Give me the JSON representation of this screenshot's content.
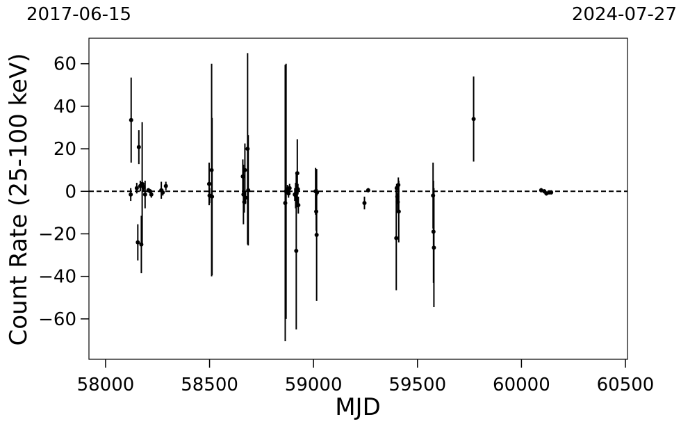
{
  "chart_data": {
    "type": "scatter",
    "top_labels": {
      "left": "2017-06-15",
      "right": "2024-07-27"
    },
    "xlabel": "MJD",
    "ylabel": "Count Rate (25-100 keV)",
    "xlim": [
      57920,
      60510
    ],
    "ylim": [
      -79,
      72
    ],
    "xticks": [
      58000,
      58500,
      59000,
      59500,
      60000,
      60500
    ],
    "yticks": [
      -60,
      -40,
      -20,
      0,
      20,
      40,
      60
    ],
    "xtick_labels": [
      "58000",
      "58500",
      "59000",
      "59500",
      "60000",
      "60500"
    ],
    "ytick_labels": [
      "−60",
      "−40",
      "−20",
      "0",
      "20",
      "40",
      "60"
    ],
    "grid": false,
    "reference_line": {
      "y": 0,
      "style": "dashed"
    },
    "points": [
      {
        "x": 58121,
        "y": -1.5,
        "err": 3
      },
      {
        "x": 58123,
        "y": 33.5,
        "err": 20
      },
      {
        "x": 58150,
        "y": 1.5,
        "err": 2.5
      },
      {
        "x": 58155,
        "y": -24,
        "err": 8.5
      },
      {
        "x": 58160,
        "y": 20.8,
        "err": 8
      },
      {
        "x": 58167,
        "y": 2.5,
        "err": 2.5
      },
      {
        "x": 58172,
        "y": -25,
        "err": 13.5
      },
      {
        "x": 58176,
        "y": 3.5,
        "err": 29
      },
      {
        "x": 58183,
        "y": 2,
        "err": 2
      },
      {
        "x": 58190,
        "y": -1.5,
        "err": 6.5
      },
      {
        "x": 58206,
        "y": 0.5,
        "err": 1
      },
      {
        "x": 58214,
        "y": 0,
        "err": 1
      },
      {
        "x": 58220,
        "y": -1.5,
        "err": 1.5
      },
      {
        "x": 58268,
        "y": 0.5,
        "err": 4
      },
      {
        "x": 58275,
        "y": -0.5,
        "err": 1.5
      },
      {
        "x": 58290,
        "y": 2.5,
        "err": 2
      },
      {
        "x": 58498,
        "y": 3.5,
        "err": 10
      },
      {
        "x": 58500,
        "y": -2,
        "err": 3.5
      },
      {
        "x": 58510,
        "y": 10,
        "err": 50
      },
      {
        "x": 58512,
        "y": -2.5,
        "err": 37
      },
      {
        "x": 58660,
        "y": 7,
        "err": 8
      },
      {
        "x": 58663,
        "y": -1.5,
        "err": 14
      },
      {
        "x": 58667,
        "y": -5,
        "err": 5
      },
      {
        "x": 58670,
        "y": 10,
        "err": 12.5
      },
      {
        "x": 58673,
        "y": -3,
        "err": 3
      },
      {
        "x": 58683,
        "y": 20,
        "err": 45
      },
      {
        "x": 58686,
        "y": 0.5,
        "err": 26
      },
      {
        "x": 58864,
        "y": -5.5,
        "err": 65
      },
      {
        "x": 58868,
        "y": 0,
        "err": 60
      },
      {
        "x": 58875,
        "y": 1,
        "err": 2
      },
      {
        "x": 58880,
        "y": -1,
        "err": 2
      },
      {
        "x": 58885,
        "y": 1.5,
        "err": 2
      },
      {
        "x": 58910,
        "y": -1.5,
        "err": 3
      },
      {
        "x": 58914,
        "y": -2,
        "err": 6
      },
      {
        "x": 58917,
        "y": -28,
        "err": 37
      },
      {
        "x": 58920,
        "y": 0,
        "err": 2
      },
      {
        "x": 58922,
        "y": 8.5,
        "err": 16
      },
      {
        "x": 58925,
        "y": 1,
        "err": 2.5
      },
      {
        "x": 58927,
        "y": -6.5,
        "err": 4
      },
      {
        "x": 59010,
        "y": 0,
        "err": 11
      },
      {
        "x": 59013,
        "y": -9.5,
        "err": 9
      },
      {
        "x": 59015,
        "y": -20.5,
        "err": 31
      },
      {
        "x": 59017,
        "y": -0.5,
        "err": 1.5
      },
      {
        "x": 59245,
        "y": -5.5,
        "err": 3
      },
      {
        "x": 59263,
        "y": 0.5,
        "err": 1
      },
      {
        "x": 59398,
        "y": -22,
        "err": 24.5
      },
      {
        "x": 59400,
        "y": 1.5,
        "err": 2
      },
      {
        "x": 59403,
        "y": -2.5,
        "err": 2
      },
      {
        "x": 59405,
        "y": -5,
        "err": 4
      },
      {
        "x": 59408,
        "y": 3,
        "err": 3.5
      },
      {
        "x": 59410,
        "y": -9.5,
        "err": 14.5
      },
      {
        "x": 59575,
        "y": -2,
        "err": 15.5
      },
      {
        "x": 59577,
        "y": -19,
        "err": 24
      },
      {
        "x": 59579,
        "y": -26.5,
        "err": 28
      },
      {
        "x": 59770,
        "y": 34,
        "err": 20
      },
      {
        "x": 60095,
        "y": 0.5,
        "err": 1
      },
      {
        "x": 60110,
        "y": 0,
        "err": 1
      },
      {
        "x": 60120,
        "y": -1,
        "err": 1
      },
      {
        "x": 60133,
        "y": -0.5,
        "err": 1
      },
      {
        "x": 60143,
        "y": -0.5,
        "err": 1
      }
    ]
  }
}
